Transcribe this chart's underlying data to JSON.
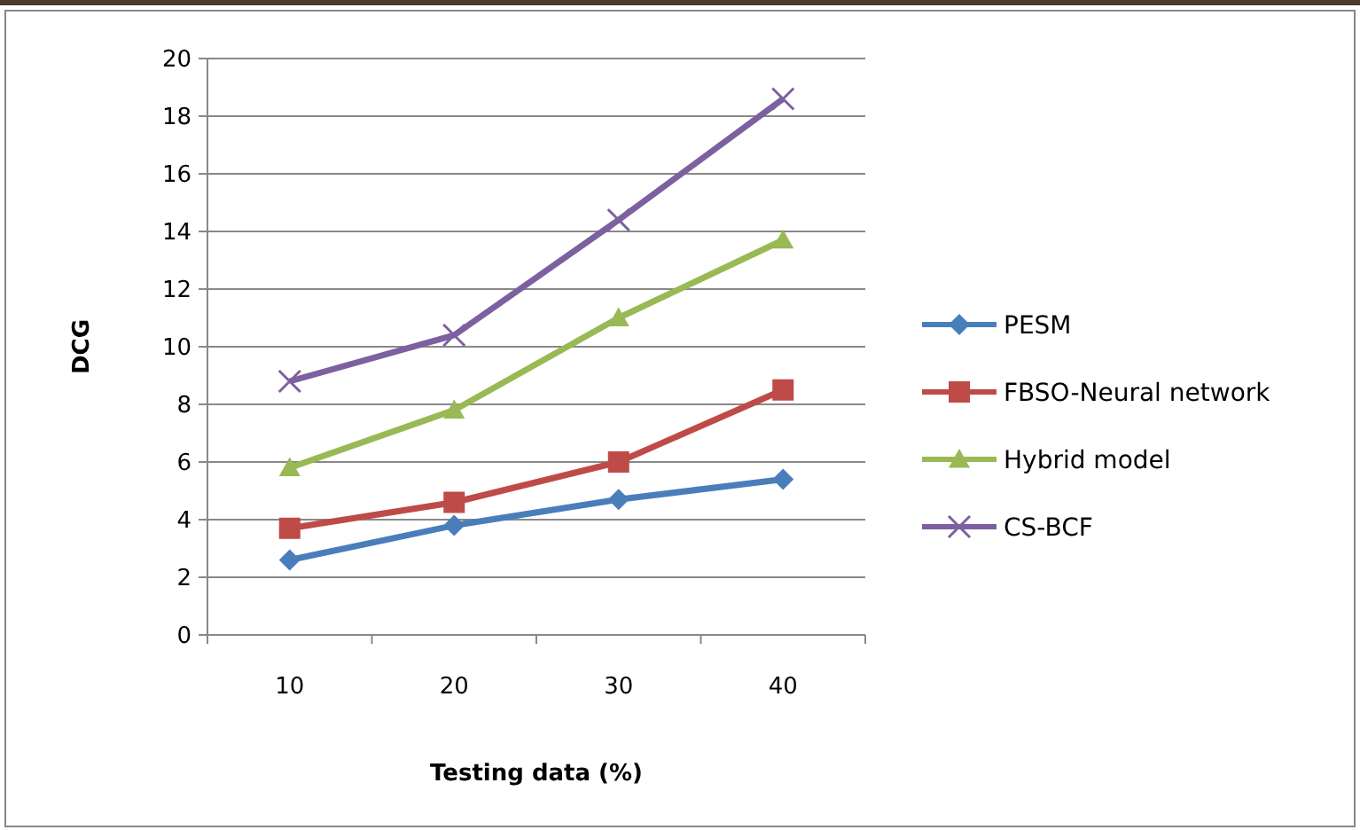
{
  "chart_data": {
    "type": "line",
    "xlabel": "Testing data (%)",
    "ylabel": "DCG",
    "categories": [
      "10",
      "20",
      "30",
      "40"
    ],
    "ylim": [
      0,
      20
    ],
    "yticks": [
      0,
      2,
      4,
      6,
      8,
      10,
      12,
      14,
      16,
      18,
      20
    ],
    "grid": "y",
    "legend": "right",
    "series": [
      {
        "name": "PESM",
        "color": "#4a7ebb",
        "marker": "diamond",
        "values": [
          2.6,
          3.8,
          4.7,
          5.4
        ]
      },
      {
        "name": "FBSO-Neural network",
        "color": "#be4b48",
        "marker": "square",
        "values": [
          3.7,
          4.6,
          6.0,
          8.5
        ]
      },
      {
        "name": "Hybrid model",
        "color": "#98b954",
        "marker": "triangle",
        "values": [
          5.8,
          7.8,
          11.0,
          13.7
        ]
      },
      {
        "name": "CS-BCF",
        "color": "#7d60a0",
        "marker": "cross",
        "values": [
          8.8,
          10.4,
          14.4,
          18.6
        ]
      }
    ]
  }
}
